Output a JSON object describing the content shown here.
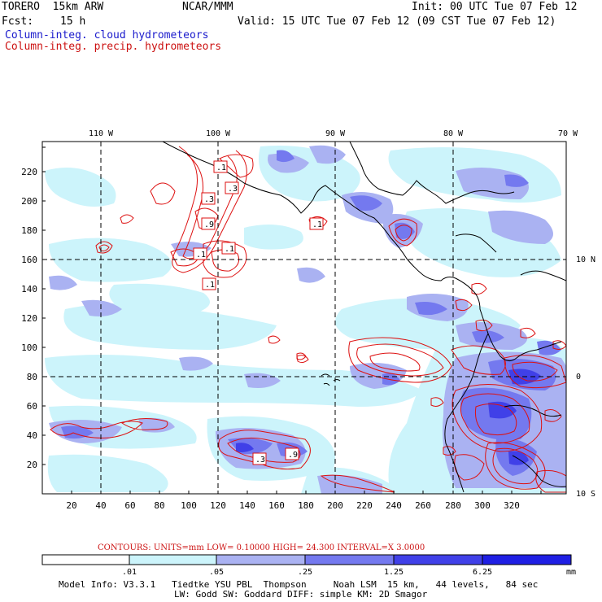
{
  "header": {
    "model": "TORERO  15km ARW",
    "org": "NCAR/MMM",
    "init": "Init: 00 UTC Tue 07 Feb 12",
    "fcst_label": "Fcst:",
    "fcst_value": "15 h",
    "valid": "Valid: 15 UTC Tue 07 Feb 12 (09 CST Tue 07 Feb 12)",
    "field1": "Column-integ. cloud hydrometeors",
    "field2": "Column-integ. precip. hydrometeors"
  },
  "colors": {
    "field1_text": "#1a1acc",
    "field2_text": "#cc1111",
    "contour": "#dd1111",
    "coastline": "#000000"
  },
  "map": {
    "top_longitude_labels": [
      "110 W",
      "100 W",
      "90 W",
      "80 W",
      "70 W"
    ],
    "right_latitude_labels": [
      "10 N",
      "0",
      "10 S"
    ],
    "x_grid_ticks": [
      "20",
      "40",
      "60",
      "80",
      "100",
      "120",
      "140",
      "160",
      "180",
      "200",
      "220",
      "240",
      "260",
      "280",
      "300",
      "320"
    ],
    "y_grid_ticks": [
      "20",
      "40",
      "60",
      "80",
      "100",
      "120",
      "140",
      "160",
      "180",
      "200",
      "220"
    ],
    "contour_labels": [
      ".1",
      ".3",
      ".3",
      ".9",
      ".1",
      ".1",
      ".1",
      ".1",
      ".3",
      ".9"
    ]
  },
  "legend": {
    "contours_text": "CONTOURS:  UNITS=mm  LOW= 0.10000      HIGH=  24.300      INTERVAL=X  3.0000",
    "levels": [
      ".01",
      ".05",
      ".25",
      "1.25",
      "6.25"
    ],
    "unit": "mm",
    "fills": [
      "#ffffff",
      "#ccf4fb",
      "#aab2f2",
      "#7479ef",
      "#4040e8",
      "#1f1fe4"
    ]
  },
  "footer": {
    "line1": "Model Info: V3.3.1   Tiedtke YSU PBL  Thompson     Noah LSM  15 km,   44 levels,   84 sec",
    "line2": "LW: Godd SW: Goddard DIFF: simple KM: 2D Smagor"
  }
}
